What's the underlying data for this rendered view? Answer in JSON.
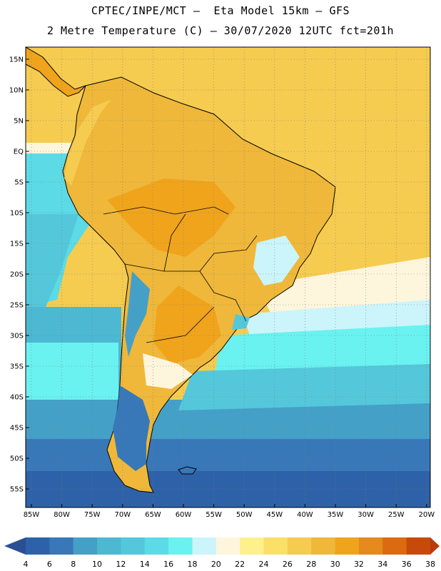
{
  "header": {
    "title_line1": "CPTEC/INPE/MCT –  Eta Model 15km – GFS",
    "title_line2": "2 Metre Temperature (C) – 30/07/2020 12UTC fct=201h"
  },
  "axes": {
    "lat_labels": [
      "15N",
      "10N",
      "5N",
      "EQ",
      "5S",
      "10S",
      "15S",
      "20S",
      "25S",
      "30S",
      "35S",
      "40S",
      "45S",
      "50S",
      "55S"
    ],
    "lon_labels": [
      "85W",
      "80W",
      "75W",
      "70W",
      "65W",
      "60W",
      "55W",
      "50W",
      "45W",
      "40W",
      "35W",
      "30W",
      "25W",
      "20W"
    ]
  },
  "colorbar": {
    "labels": [
      "4",
      "6",
      "8",
      "10",
      "12",
      "14",
      "16",
      "18",
      "20",
      "22",
      "24",
      "26",
      "28",
      "30",
      "32",
      "34",
      "36",
      "38"
    ],
    "colors": [
      "#2e62a8",
      "#3878b8",
      "#45a0c8",
      "#4cb8d2",
      "#54c8da",
      "#5cdae6",
      "#6af2f0",
      "#ccf4fb",
      "#fdf6dc",
      "#fef08a",
      "#fbe068",
      "#f5cc50",
      "#efb83a",
      "#f0a41c",
      "#e58a1c",
      "#dc6a10",
      "#c84a08"
    ],
    "low_color": "#2a4f94",
    "high_color": "#b83c0c"
  },
  "map": {
    "land_border_color": "#000000",
    "grid_color": "#888888"
  }
}
